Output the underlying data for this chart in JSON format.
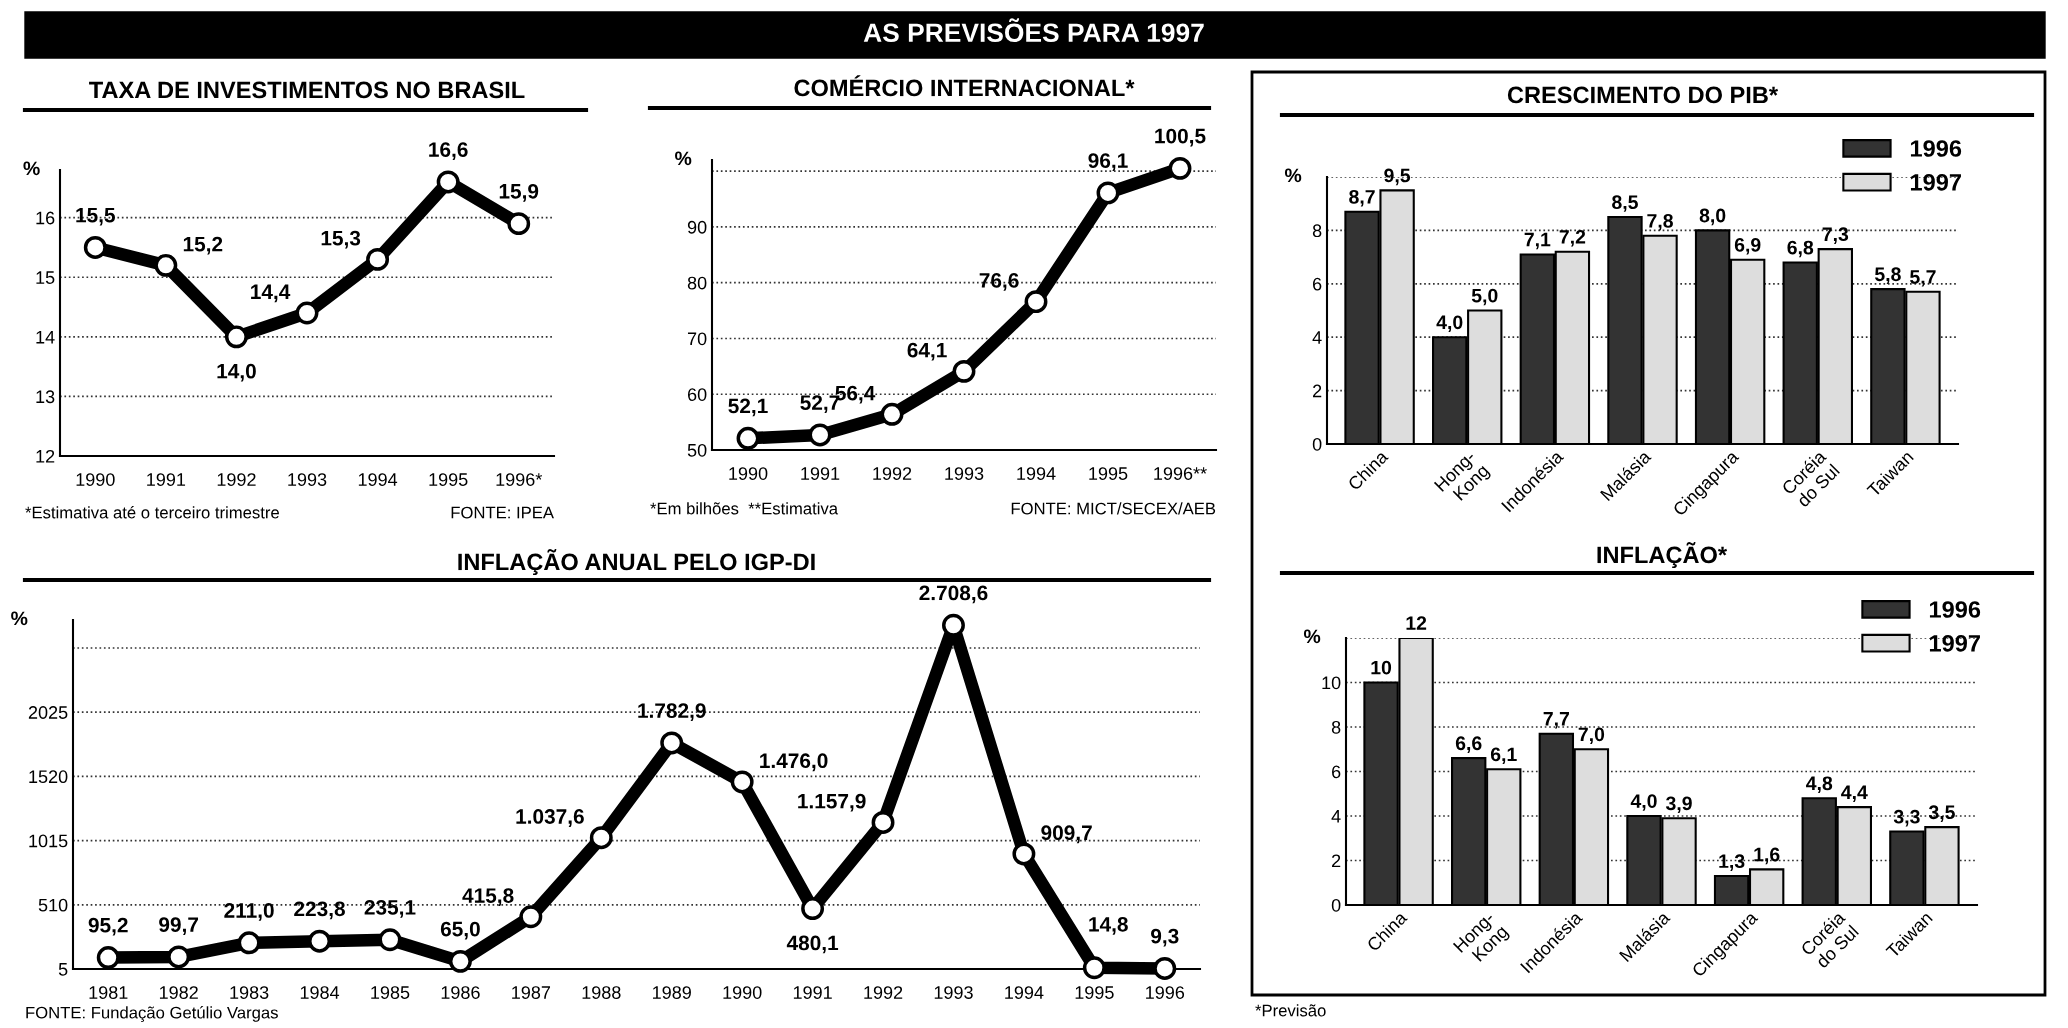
{
  "chart_data": [
    {
      "type": "other",
      "title": "AS PREVISÕES PARA 1997"
    },
    {
      "type": "line",
      "title": "TAXA DE INVESTIMENTOS NO BRASIL",
      "ylabel": "%",
      "categories": [
        "1990",
        "1991",
        "1992",
        "1993",
        "1994",
        "1995",
        "1996*"
      ],
      "values": [
        15.5,
        15.2,
        14.0,
        14.4,
        15.3,
        16.6,
        15.9
      ],
      "value_labels": [
        "15,5",
        "15,2",
        "14,0",
        "14,4",
        "15,3",
        "16,6",
        "15,9"
      ],
      "color": "#000000",
      "marker": "circle",
      "ylim": [
        12,
        16.8
      ],
      "yticks": [
        12,
        13,
        14,
        15,
        16
      ],
      "grid": "y",
      "annotations": [
        "*Estimativa até o terceiro trimestre",
        "FONTE: IPEA"
      ]
    },
    {
      "type": "line",
      "title": "COMÉRCIO INTERNACIONAL*",
      "ylabel": "%",
      "categories": [
        "1990",
        "1991",
        "1992",
        "1993",
        "1994",
        "1995",
        "1996**"
      ],
      "values": [
        52.1,
        52.7,
        56.4,
        64.1,
        76.6,
        96.1,
        100.5
      ],
      "value_labels": [
        "52,1",
        "52,7",
        "56,4",
        "64,1",
        "76,6",
        "96,1",
        "100,5"
      ],
      "color": "#000000",
      "marker": "circle",
      "ylim": [
        50,
        102
      ],
      "yticks": [
        50,
        60,
        70,
        80,
        90,
        {
          "value": 100,
          "label": null
        }
      ],
      "grid": "y",
      "annotations": [
        "*Em bilhões  **Estimativa",
        "FONTE: MICT/SECEX/AEB"
      ]
    },
    {
      "type": "line",
      "title": "INFLAÇÃO ANUAL PELO IGP-DI",
      "ylabel": "%",
      "categories": [
        "1981",
        "1982",
        "1983",
        "1984",
        "1985",
        "1986",
        "1987",
        "1988",
        "1989",
        "1990",
        "1991",
        "1992",
        "1993",
        "1994",
        "1995",
        "1996"
      ],
      "values": [
        95.2,
        99.7,
        211.0,
        223.8,
        235.1,
        65.0,
        415.8,
        1037.6,
        1782.9,
        1476.0,
        480.1,
        1157.9,
        2708.6,
        909.7,
        14.8,
        9.3
      ],
      "value_labels": [
        "95,2",
        "99,7",
        "211,0",
        "223,8",
        "235,1",
        "65,0",
        "415,8",
        "1.037,6",
        "1.782,9",
        "1.476,0",
        "480,1",
        "1.157,9",
        "2.708,6",
        "909,7",
        "14,8",
        "9,3"
      ],
      "color": "#000000",
      "marker": "circle",
      "ylim": [
        5,
        2750
      ],
      "yticks": [
        5,
        510,
        1015,
        1520,
        2025,
        {
          "value": 2530,
          "label": null
        }
      ],
      "grid": "y",
      "annotations": [
        "FONTE: Fundação Getúlio Vargas"
      ]
    },
    {
      "type": "bar",
      "title": "CRESCIMENTO DO PIB*",
      "ylabel": "%",
      "categories": [
        "China",
        "Hong-\nKong",
        "Indonésia",
        "Malásia",
        "Cingapura",
        "Coréia\ndo Sul",
        "Taiwan"
      ],
      "series": [
        {
          "name": "1996",
          "color": "#333333",
          "values": [
            8.7,
            4.0,
            7.1,
            8.5,
            8.0,
            6.8,
            5.8
          ],
          "value_labels": [
            "8,7",
            "4,0",
            "7,1",
            "8,5",
            "8,0",
            "6,8",
            "5,8"
          ]
        },
        {
          "name": "1997",
          "color": "#dddddd",
          "values": [
            9.5,
            5.0,
            7.2,
            7.8,
            6.9,
            7.3,
            5.7
          ],
          "value_labels": [
            "9,5",
            "5,0",
            "7,2",
            "7,8",
            "6,9",
            "7,3",
            "5,7"
          ]
        }
      ],
      "ylim": [
        0,
        10
      ],
      "yticks": [
        0,
        2,
        4,
        6,
        8,
        {
          "value": 10,
          "label": null
        }
      ],
      "grid": "y",
      "legend": "top right"
    },
    {
      "type": "bar",
      "title": "INFLAÇÃO*",
      "ylabel": "%",
      "categories": [
        "China",
        "Hong-\nKong",
        "Indonésia",
        "Malásia",
        "Cingapura",
        "Coréia\ndo Sul",
        "Taiwan"
      ],
      "series": [
        {
          "name": "1996",
          "color": "#333333",
          "values": [
            10,
            6.6,
            7.7,
            4.0,
            1.3,
            4.8,
            3.3
          ],
          "value_labels": [
            "10",
            "6,6",
            "7,7",
            "4,0",
            "1,3",
            "4,8",
            "3,3"
          ]
        },
        {
          "name": "1997",
          "color": "#dddddd",
          "values": [
            12,
            6.1,
            7.0,
            3.9,
            1.6,
            4.4,
            3.5
          ],
          "value_labels": [
            "12",
            "6,1",
            "7,0",
            "3,9",
            "1,6",
            "4,4",
            "3,5"
          ]
        }
      ],
      "ylim": [
        0,
        12
      ],
      "yticks": [
        0,
        2,
        4,
        6,
        8,
        10,
        {
          "value": 12,
          "label": null
        }
      ],
      "grid": "y",
      "legend": "top right",
      "annotations": [
        "*Previsão"
      ]
    }
  ]
}
